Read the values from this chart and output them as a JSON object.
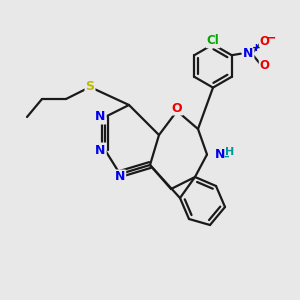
{
  "background_color": "#e8e8e8",
  "bond_color": "#1a1a1a",
  "atom_colors": {
    "N": "#0000ee",
    "O": "#ee0000",
    "S": "#bbbb00",
    "Cl": "#00aa00",
    "NH_color": "#009999",
    "plus": "#0000ee",
    "minus": "#ee0000"
  },
  "figsize": [
    3.0,
    3.0
  ],
  "dpi": 100
}
